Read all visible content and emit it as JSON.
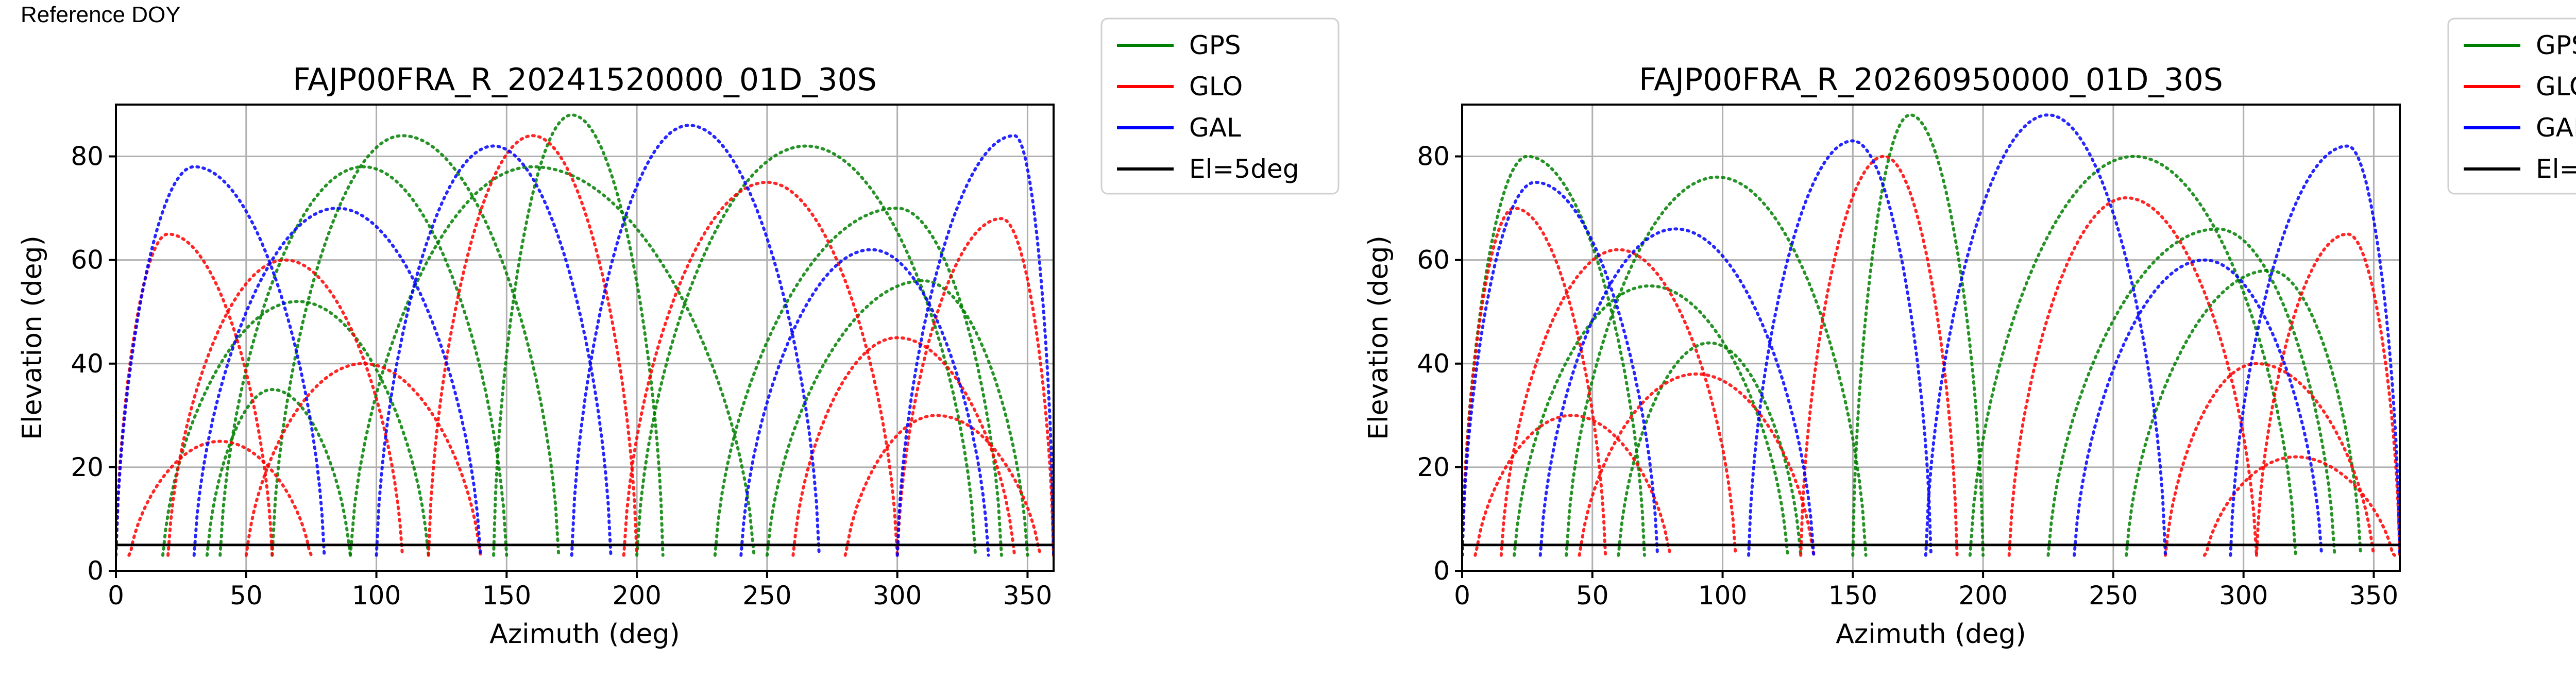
{
  "header": {
    "reference_label": "Reference DOY"
  },
  "legend_entries": [
    {
      "label": "GPS",
      "color": "#008000"
    },
    {
      "label": "GLO",
      "color": "#ff0000"
    },
    {
      "label": "GAL",
      "color": "#0000ff"
    },
    {
      "label": "El=5deg",
      "color": "#000000"
    }
  ],
  "chart_data": [
    {
      "type": "scatter",
      "title": "FAJP00FRA_R_20241520000_01D_30S",
      "xlabel": "Azimuth (deg)",
      "ylabel": "Elevation (deg)",
      "xlim": [
        0,
        360
      ],
      "ylim": [
        0,
        90
      ],
      "xticks": [
        "0",
        "50",
        "100",
        "150",
        "200",
        "250",
        "300",
        "350"
      ],
      "yticks": [
        "0",
        "20",
        "40",
        "60",
        "80"
      ],
      "grid": true,
      "legend_position": "outside-right-top",
      "threshold_line": {
        "label": "El=5deg",
        "elevation": 5
      },
      "series": [
        {
          "name": "GPS",
          "color": "#008000",
          "arcs": [
            {
              "az_start": 18,
              "az_end": 120,
              "peak_az": 70,
              "peak_el": 52
            },
            {
              "az_start": 40,
              "az_end": 150,
              "peak_az": 95,
              "peak_el": 78
            },
            {
              "az_start": 60,
              "az_end": 170,
              "peak_az": 110,
              "peak_el": 84
            },
            {
              "az_start": 145,
              "az_end": 210,
              "peak_az": 175,
              "peak_el": 88
            },
            {
              "az_start": 200,
              "az_end": 330,
              "peak_az": 265,
              "peak_el": 82
            },
            {
              "az_start": 230,
              "az_end": 340,
              "peak_az": 300,
              "peak_el": 70
            },
            {
              "az_start": 250,
              "az_end": 350,
              "peak_az": 310,
              "peak_el": 56
            },
            {
              "az_start": 35,
              "az_end": 90,
              "peak_az": 60,
              "peak_el": 35
            },
            {
              "az_start": 90,
              "az_end": 245,
              "peak_az": 160,
              "peak_el": 78
            }
          ]
        },
        {
          "name": "GLO",
          "color": "#ff0000",
          "arcs": [
            {
              "az_start": 5,
              "az_end": 75,
              "peak_az": 40,
              "peak_el": 25
            },
            {
              "az_start": 20,
              "az_end": 110,
              "peak_az": 65,
              "peak_el": 60
            },
            {
              "az_start": 0,
              "az_end": 60,
              "peak_az": 20,
              "peak_el": 65
            },
            {
              "az_start": 120,
              "az_end": 200,
              "peak_az": 160,
              "peak_el": 84
            },
            {
              "az_start": 195,
              "az_end": 300,
              "peak_az": 250,
              "peak_el": 75
            },
            {
              "az_start": 260,
              "az_end": 345,
              "peak_az": 300,
              "peak_el": 45
            },
            {
              "az_start": 300,
              "az_end": 360,
              "peak_az": 340,
              "peak_el": 68
            },
            {
              "az_start": 280,
              "az_end": 355,
              "peak_az": 315,
              "peak_el": 30
            },
            {
              "az_start": 50,
              "az_end": 140,
              "peak_az": 95,
              "peak_el": 40
            }
          ]
        },
        {
          "name": "GAL",
          "color": "#0000ff",
          "arcs": [
            {
              "az_start": 30,
              "az_end": 140,
              "peak_az": 85,
              "peak_el": 70
            },
            {
              "az_start": 100,
              "az_end": 190,
              "peak_az": 145,
              "peak_el": 82
            },
            {
              "az_start": 175,
              "az_end": 270,
              "peak_az": 220,
              "peak_el": 86
            },
            {
              "az_start": 240,
              "az_end": 335,
              "peak_az": 290,
              "peak_el": 62
            },
            {
              "az_start": 0,
              "az_end": 80,
              "peak_az": 30,
              "peak_el": 78
            },
            {
              "az_start": 300,
              "az_end": 360,
              "peak_az": 345,
              "peak_el": 84
            }
          ]
        }
      ]
    },
    {
      "type": "scatter",
      "title": "FAJP00FRA_R_20260950000_01D_30S",
      "xlabel": "Azimuth (deg)",
      "ylabel": "Elevation (deg)",
      "xlim": [
        0,
        360
      ],
      "ylim": [
        0,
        90
      ],
      "xticks": [
        "0",
        "50",
        "100",
        "150",
        "200",
        "250",
        "300",
        "350"
      ],
      "yticks": [
        "0",
        "20",
        "40",
        "60",
        "80"
      ],
      "grid": true,
      "legend_position": "outside-right-top",
      "threshold_line": {
        "label": "El=5deg",
        "elevation": 5
      },
      "series": [
        {
          "name": "GPS",
          "color": "#008000",
          "arcs": [
            {
              "az_start": 20,
              "az_end": 125,
              "peak_az": 72,
              "peak_el": 55
            },
            {
              "az_start": 40,
              "az_end": 155,
              "peak_az": 98,
              "peak_el": 76
            },
            {
              "az_start": 150,
              "az_end": 200,
              "peak_az": 172,
              "peak_el": 88
            },
            {
              "az_start": 195,
              "az_end": 320,
              "peak_az": 258,
              "peak_el": 80
            },
            {
              "az_start": 225,
              "az_end": 335,
              "peak_az": 290,
              "peak_el": 66
            },
            {
              "az_start": 60,
              "az_end": 130,
              "peak_az": 95,
              "peak_el": 44
            },
            {
              "az_start": 255,
              "az_end": 345,
              "peak_az": 310,
              "peak_el": 58
            },
            {
              "az_start": 0,
              "az_end": 70,
              "peak_az": 25,
              "peak_el": 80
            }
          ]
        },
        {
          "name": "GLO",
          "color": "#ff0000",
          "arcs": [
            {
              "az_start": 5,
              "az_end": 80,
              "peak_az": 42,
              "peak_el": 30
            },
            {
              "az_start": 15,
              "az_end": 105,
              "peak_az": 60,
              "peak_el": 62
            },
            {
              "az_start": 0,
              "az_end": 55,
              "peak_az": 20,
              "peak_el": 70
            },
            {
              "az_start": 130,
              "az_end": 190,
              "peak_az": 162,
              "peak_el": 80
            },
            {
              "az_start": 210,
              "az_end": 305,
              "peak_az": 255,
              "peak_el": 72
            },
            {
              "az_start": 270,
              "az_end": 350,
              "peak_az": 305,
              "peak_el": 40
            },
            {
              "az_start": 305,
              "az_end": 360,
              "peak_az": 340,
              "peak_el": 65
            },
            {
              "az_start": 285,
              "az_end": 358,
              "peak_az": 320,
              "peak_el": 22
            },
            {
              "az_start": 45,
              "az_end": 135,
              "peak_az": 90,
              "peak_el": 38
            }
          ]
        },
        {
          "name": "GAL",
          "color": "#0000ff",
          "arcs": [
            {
              "az_start": 30,
              "az_end": 135,
              "peak_az": 82,
              "peak_el": 66
            },
            {
              "az_start": 110,
              "az_end": 180,
              "peak_az": 150,
              "peak_el": 83
            },
            {
              "az_start": 178,
              "az_end": 270,
              "peak_az": 225,
              "peak_el": 88
            },
            {
              "az_start": 235,
              "az_end": 330,
              "peak_az": 285,
              "peak_el": 60
            },
            {
              "az_start": 0,
              "az_end": 75,
              "peak_az": 28,
              "peak_el": 75
            },
            {
              "az_start": 295,
              "az_end": 360,
              "peak_az": 340,
              "peak_el": 82
            }
          ]
        }
      ]
    }
  ]
}
